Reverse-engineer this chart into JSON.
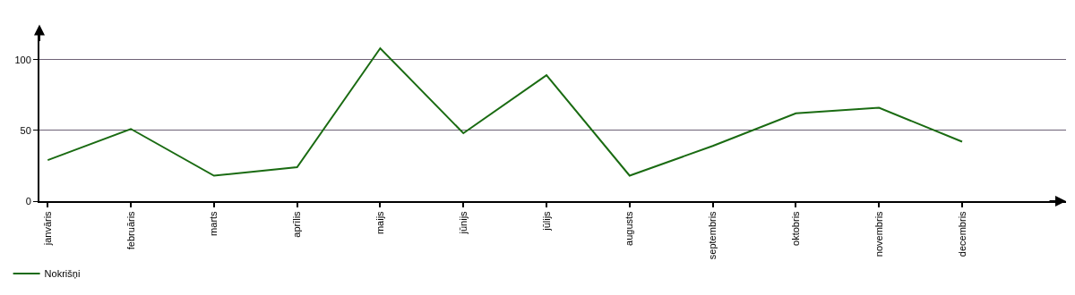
{
  "chart_data": {
    "type": "line",
    "categories": [
      "janvāris",
      "februāris",
      "marts",
      "aprīlis",
      "maijs",
      "jūnijs",
      "jūlijs",
      "augusts",
      "septembris",
      "oktobris",
      "novembris",
      "decembris"
    ],
    "series": [
      {
        "name": "Nokrišņi",
        "color": "#1a6b12",
        "values": [
          29,
          51,
          18,
          24,
          108,
          48,
          89,
          18,
          39,
          62,
          66,
          42
        ]
      }
    ],
    "ylim": [
      0,
      120
    ],
    "yticks": [
      0,
      50,
      100
    ],
    "grid": "y",
    "legend": "bottom left",
    "marker": "none",
    "line_style": "solid"
  }
}
